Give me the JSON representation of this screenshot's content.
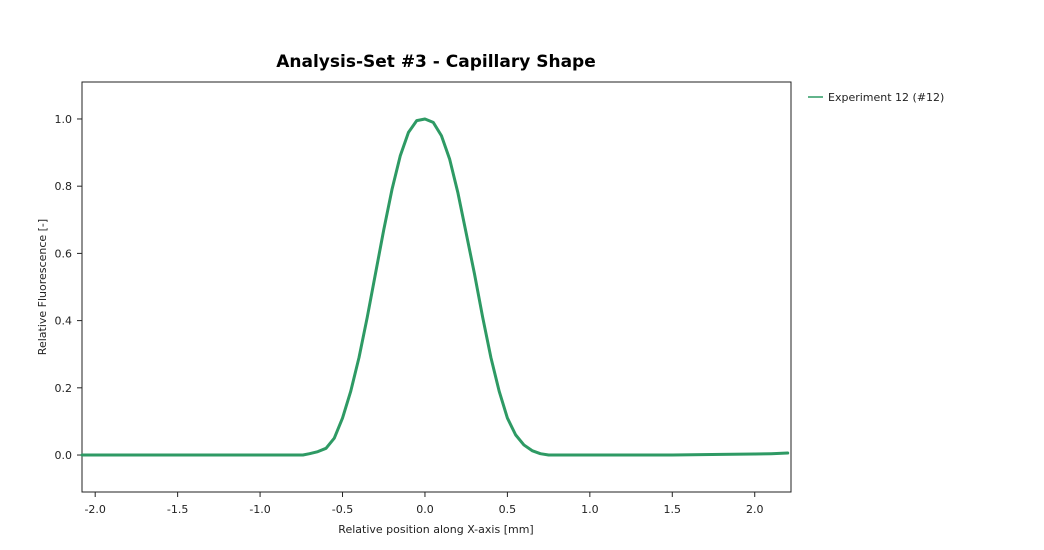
{
  "chart_data": {
    "type": "line",
    "title": "Analysis-Set #3 - Capillary Shape",
    "xlabel": "Relative position along X-axis [mm]",
    "ylabel": "Relative Fluorescence [-]",
    "xlim": [
      -2.08,
      2.22
    ],
    "ylim": [
      -0.11,
      1.11
    ],
    "xticks": [
      -2.0,
      -1.5,
      -1.0,
      -0.5,
      0.0,
      0.5,
      1.0,
      1.5,
      2.0
    ],
    "xtick_labels": [
      "-2.0",
      "-1.5",
      "-1.0",
      "-0.5",
      "0.0",
      "0.5",
      "1.0",
      "1.5",
      "2.0"
    ],
    "yticks": [
      0.0,
      0.2,
      0.4,
      0.6,
      0.8,
      1.0
    ],
    "ytick_labels": [
      "0.0",
      "0.2",
      "0.4",
      "0.6",
      "0.8",
      "1.0"
    ],
    "grid": false,
    "legend_position": "outside-top-right",
    "series": [
      {
        "name": "Experiment 12 (#12)",
        "color": "#2e9a64",
        "x": [
          -2.08,
          -1.5,
          -1.0,
          -0.8,
          -0.74,
          -0.7,
          -0.65,
          -0.6,
          -0.55,
          -0.5,
          -0.45,
          -0.4,
          -0.35,
          -0.3,
          -0.25,
          -0.2,
          -0.15,
          -0.1,
          -0.05,
          0.0,
          0.05,
          0.1,
          0.15,
          0.2,
          0.25,
          0.3,
          0.35,
          0.4,
          0.45,
          0.5,
          0.55,
          0.6,
          0.65,
          0.7,
          0.75,
          0.8,
          1.0,
          1.5,
          1.8,
          2.0,
          2.1,
          2.2
        ],
        "y": [
          0.0,
          0.0,
          0.0,
          0.0,
          0.0,
          0.004,
          0.01,
          0.02,
          0.05,
          0.11,
          0.19,
          0.29,
          0.41,
          0.54,
          0.67,
          0.79,
          0.89,
          0.96,
          0.995,
          1.0,
          0.99,
          0.95,
          0.88,
          0.78,
          0.66,
          0.54,
          0.41,
          0.29,
          0.19,
          0.11,
          0.06,
          0.03,
          0.013,
          0.004,
          0.0,
          0.0,
          0.0,
          0.0,
          0.002,
          0.003,
          0.004,
          0.006
        ]
      }
    ]
  }
}
